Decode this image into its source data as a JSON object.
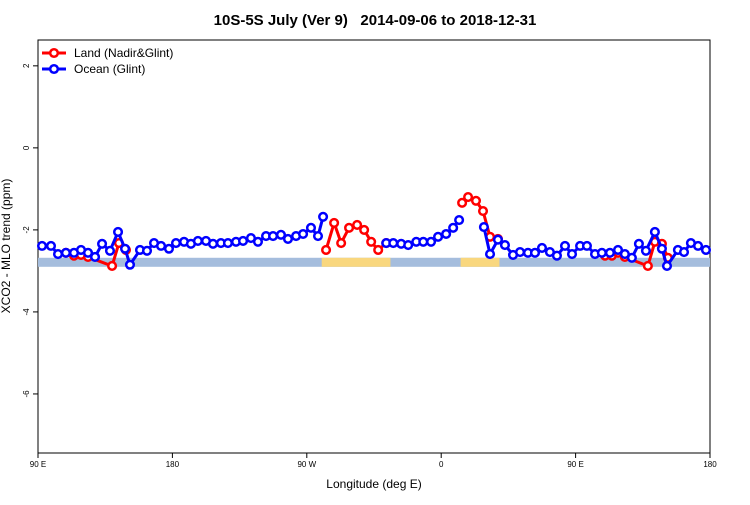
{
  "chart_data": {
    "type": "line",
    "title": "10S-5S July (Ver 9)   2014-09-06 to 2018-12-31",
    "x_label": "Longitude (deg E)",
    "y_label": "XCO2 - MLO trend (ppm)",
    "xlim": [
      90,
      540
    ],
    "ylim": [
      -7.44,
      2.63
    ],
    "xticks": [
      {
        "value": 90,
        "label": "90 E"
      },
      {
        "value": 180,
        "label": "180"
      },
      {
        "value": 270,
        "label": "90 W"
      },
      {
        "value": 360,
        "label": "0"
      },
      {
        "value": 450,
        "label": "90 E"
      },
      {
        "value": 540,
        "label": "180"
      }
    ],
    "yticks": [
      2,
      0,
      -2,
      -4,
      -6
    ],
    "legend": "top-left",
    "surface_band": {
      "range": [
        -2.9,
        -2.68
      ],
      "ocean_color": "#a5bddd",
      "land_color": "#f9d77e",
      "land": [
        [
          280,
          326
        ],
        [
          373,
          399
        ]
      ]
    },
    "series": [
      {
        "name": "Land (Nadir&Glint)",
        "color": "#ff0000",
        "x": [
          108.7,
          114.1,
          118.8,
          123.5,
          139.6,
          144.2,
          148.9,
          null,
          282.9,
          288.3,
          293,
          298.3,
          303.7,
          308.4,
          313.1,
          317.8,
          323.2,
          null,
          374,
          378,
          383.3,
          388,
          392.7,
          398,
          null,
          469.7,
          474.3,
          478.4,
          483,
          498.4,
          503.1,
          507.8,
          511.8
        ],
        "values": [
          -2.56,
          -2.63,
          -2.61,
          -2.66,
          -2.88,
          -2.32,
          -2.49,
          null,
          -2.49,
          -1.83,
          -2.32,
          -1.95,
          -1.88,
          -2.0,
          -2.29,
          -2.49,
          -2.32,
          null,
          -1.34,
          -1.2,
          -1.29,
          -1.54,
          -2.17,
          -2.22,
          null,
          -2.63,
          -2.63,
          -2.56,
          -2.66,
          -2.88,
          -2.29,
          -2.34,
          -2.68
        ]
      },
      {
        "name": "Ocean (Glint)",
        "color": "#0000ff",
        "x": [
          92.7,
          98.7,
          103.4,
          108.7,
          114.1,
          118.8,
          123.5,
          128.2,
          132.9,
          138.2,
          143.6,
          148.3,
          151.6,
          158.3,
          163,
          167.7,
          172.4,
          177.7,
          182.4,
          187.8,
          192.4,
          197.1,
          202.5,
          207.2,
          212.5,
          217.2,
          222.6,
          227.3,
          232.6,
          237.3,
          242.7,
          247.4,
          252.7,
          257.4,
          262.8,
          267.5,
          272.8,
          277.5,
          280.9,
          null,
          323.2,
          327.9,
          333.2,
          337.9,
          343.3,
          348,
          353.2,
          357.9,
          363.3,
          368,
          372,
          null,
          388.6,
          392.7,
          398,
          402.7,
          408.1,
          412.8,
          418.1,
          422.8,
          427.5,
          432.8,
          437.5,
          442.9,
          447.6,
          453,
          457.6,
          463,
          467.6,
          473,
          478.4,
          483,
          487.7,
          492.4,
          497.1,
          503.1,
          507.8,
          511.2,
          518.5,
          522.6,
          527.2,
          532,
          537.3
        ],
        "values": [
          -2.39,
          -2.39,
          -2.59,
          -2.56,
          -2.56,
          -2.49,
          -2.56,
          -2.66,
          -2.34,
          -2.51,
          -2.05,
          -2.46,
          -2.85,
          -2.49,
          -2.51,
          -2.32,
          -2.39,
          -2.46,
          -2.32,
          -2.29,
          -2.34,
          -2.27,
          -2.27,
          -2.34,
          -2.32,
          -2.32,
          -2.29,
          -2.27,
          -2.2,
          -2.29,
          -2.15,
          -2.15,
          -2.12,
          -2.22,
          -2.15,
          -2.1,
          -1.95,
          -2.15,
          -1.68,
          null,
          -2.32,
          -2.32,
          -2.34,
          -2.37,
          -2.29,
          -2.29,
          -2.29,
          -2.17,
          -2.1,
          -1.95,
          -1.76,
          null,
          -1.93,
          -2.59,
          -2.24,
          -2.37,
          -2.61,
          -2.54,
          -2.56,
          -2.56,
          -2.44,
          -2.54,
          -2.63,
          -2.39,
          -2.59,
          -2.39,
          -2.39,
          -2.59,
          -2.56,
          -2.56,
          -2.49,
          -2.59,
          -2.68,
          -2.34,
          -2.51,
          -2.05,
          -2.46,
          -2.88,
          -2.49,
          -2.54,
          -2.32,
          -2.39,
          -2.49
        ]
      }
    ]
  }
}
